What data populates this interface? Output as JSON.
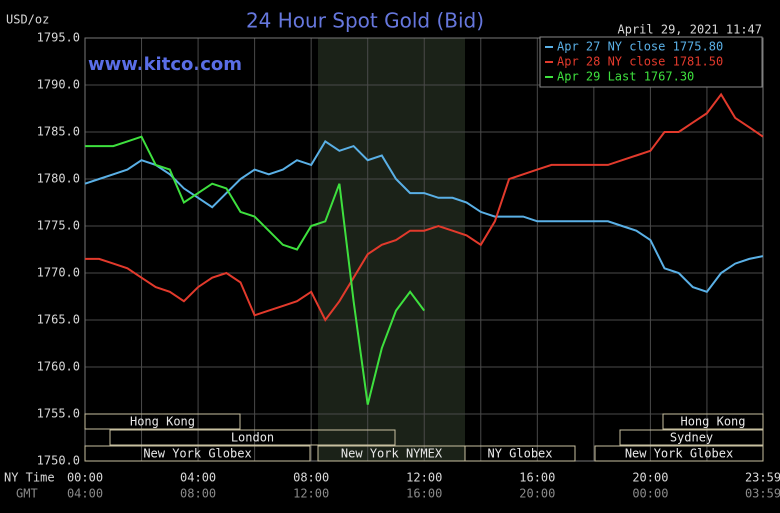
{
  "chart_data": {
    "type": "line",
    "title": "24 Hour Spot Gold (Bid)",
    "watermark": "www.kitco.com",
    "y_label": "USD/oz",
    "timestamp": "April 29, 2021 11:47",
    "x_label": "NY Time",
    "x2_label": "GMT",
    "x": [
      0,
      0.5,
      1,
      1.5,
      2,
      2.5,
      3,
      3.5,
      4,
      4.5,
      5,
      5.5,
      6,
      6.5,
      7,
      7.5,
      8,
      8.5,
      9,
      9.5,
      10,
      10.5,
      11,
      11.5,
      12,
      12.5,
      13,
      13.5,
      14,
      14.5,
      15,
      15.5,
      16,
      16.5,
      17,
      17.5,
      18,
      18.5,
      19,
      19.5,
      20,
      20.5,
      21,
      21.5,
      22,
      22.5,
      23,
      23.5,
      23.983
    ],
    "xlim": [
      0,
      23.983
    ],
    "xticks": [
      {
        "value": 0,
        "label": "00:00"
      },
      {
        "value": 4,
        "label": "04:00"
      },
      {
        "value": 8,
        "label": "08:00"
      },
      {
        "value": 12,
        "label": "12:00"
      },
      {
        "value": 16,
        "label": "16:00"
      },
      {
        "value": 20,
        "label": "20:00"
      },
      {
        "value": 23.983,
        "label": "23:59"
      }
    ],
    "x2ticks": [
      "04:00",
      "08:00",
      "12:00",
      "16:00",
      "20:00",
      "00:00",
      "03:59"
    ],
    "minor_xticks": [
      2,
      6,
      10,
      14,
      18,
      22
    ],
    "ylim": [
      1750,
      1795
    ],
    "yticks": [
      {
        "value": 1750,
        "label": "1750.0"
      },
      {
        "value": 1755,
        "label": "1755.0"
      },
      {
        "value": 1760,
        "label": "1760.0"
      },
      {
        "value": 1765,
        "label": "1765.0"
      },
      {
        "value": 1770,
        "label": "1770.0"
      },
      {
        "value": 1775,
        "label": "1775.0"
      },
      {
        "value": 1780,
        "label": "1780.0"
      },
      {
        "value": 1785,
        "label": "1785.0"
      },
      {
        "value": 1790,
        "label": "1790.0"
      },
      {
        "value": 1795,
        "label": "1795.0"
      }
    ],
    "grid": true,
    "legend": "upper right",
    "sessions": [
      "Hong Kong",
      "Hong Kong",
      "London",
      "Sydney",
      "New York Globex",
      "New York NYMEX",
      "NY Globex",
      "New York Globex"
    ],
    "series": [
      {
        "name": "Apr 27 NY close 1775.80",
        "color": "#5ab0e6",
        "values": [
          1779.5,
          1780,
          1780.5,
          1781,
          1782,
          1781.5,
          1780.5,
          1779,
          1778,
          1777,
          1778.5,
          1780,
          1781,
          1780.5,
          1781,
          1782,
          1781.5,
          1784,
          1783,
          1783.5,
          1782,
          1782.5,
          1780,
          1778.5,
          1778.5,
          1778,
          1778,
          1777.5,
          1776.5,
          1776,
          1776,
          1776,
          1775.5,
          1775.5,
          1775.5,
          1775.5,
          1775.5,
          1775.5,
          1775,
          1774.5,
          1773.5,
          1770.5,
          1770,
          1768.5,
          1768,
          1770,
          1771,
          1771.5,
          1771.8
        ]
      },
      {
        "name": "Apr 28 NY close 1781.50",
        "color": "#e23a2c",
        "values": [
          1771.5,
          1771.5,
          1771,
          1770.5,
          1769.5,
          1768.5,
          1768,
          1767,
          1768.5,
          1769.5,
          1770,
          1769,
          1765.5,
          1766,
          1766.5,
          1767,
          1768,
          1765,
          1767,
          1769.5,
          1772,
          1773,
          1773.5,
          1774.5,
          1774.5,
          1775,
          1774.5,
          1774,
          1773,
          1775.5,
          1780,
          1780.5,
          1781,
          1781.5,
          1781.5,
          1781.5,
          1781.5,
          1781.5,
          1782,
          1782.5,
          1783,
          1785,
          1785,
          1786,
          1787,
          1789,
          1786.5,
          1785.5,
          1784.5
        ]
      },
      {
        "name": "Apr 29 Last 1767.30",
        "color": "#3ee03e",
        "values": [
          1783.5,
          1783.5,
          1783.5,
          1784,
          1784.5,
          1781.5,
          1781,
          1777.5,
          1778.5,
          1779.5,
          1779,
          1776.5,
          1776,
          1774.5,
          1773,
          1772.5,
          1775,
          1775.5,
          1779.5,
          1767,
          1756,
          1762,
          1766,
          1768,
          1766,
          null,
          null,
          null,
          null,
          null,
          null,
          null,
          null,
          null,
          null,
          null,
          null,
          null,
          null,
          null,
          null,
          null,
          null,
          null,
          null,
          null,
          null,
          null,
          null
        ]
      }
    ]
  }
}
